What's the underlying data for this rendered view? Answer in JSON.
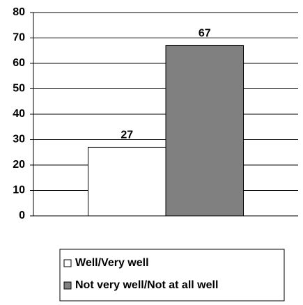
{
  "chart_data": {
    "type": "bar",
    "categories": [
      null
    ],
    "series": [
      {
        "name": "Well/Very well",
        "color": "#ffffff",
        "values": [
          27
        ]
      },
      {
        "name": "Not very well/Not at all well",
        "color": "#808080",
        "values": [
          67
        ]
      }
    ],
    "ylim": [
      0,
      80
    ],
    "yticks": [
      0,
      10,
      20,
      30,
      40,
      50,
      60,
      70,
      80
    ],
    "grid": true,
    "legend": "bottom"
  }
}
